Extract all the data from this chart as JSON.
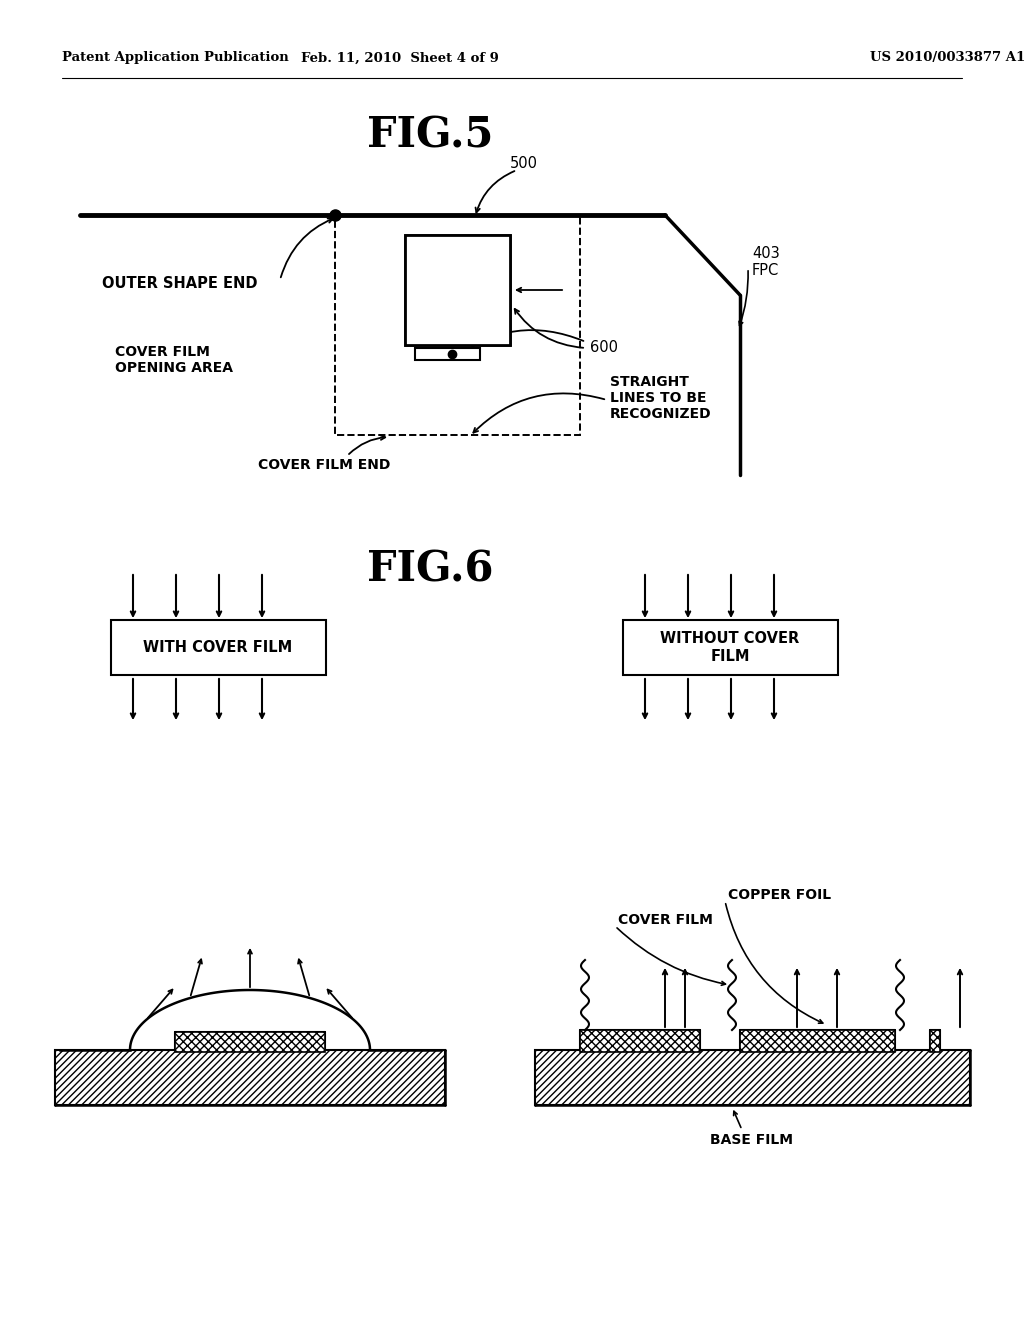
{
  "background_color": "#ffffff",
  "header_left": "Patent Application Publication",
  "header_mid": "Feb. 11, 2010  Sheet 4 of 9",
  "header_right": "US 2010/0033877 A1",
  "fig5_title": "FIG.5",
  "fig6_title": "FIG.6",
  "label_500": "500",
  "label_403": "403\nFPC",
  "label_600": "600",
  "label_outer": "OUTER SHAPE END",
  "label_cover_film_opening": "COVER FILM\nOPENING AREA",
  "label_cover_film_end": "COVER FILM END",
  "label_straight": "STRAIGHT\nLINES TO BE\nRECOGNIZED",
  "label_with_cover": "WITH COVER FILM",
  "label_without_cover": "WITHOUT COVER\nFILM",
  "label_copper_foil": "COPPER FOIL",
  "label_cover_film": "COVER FILM",
  "label_base_film": "BASE FILM"
}
